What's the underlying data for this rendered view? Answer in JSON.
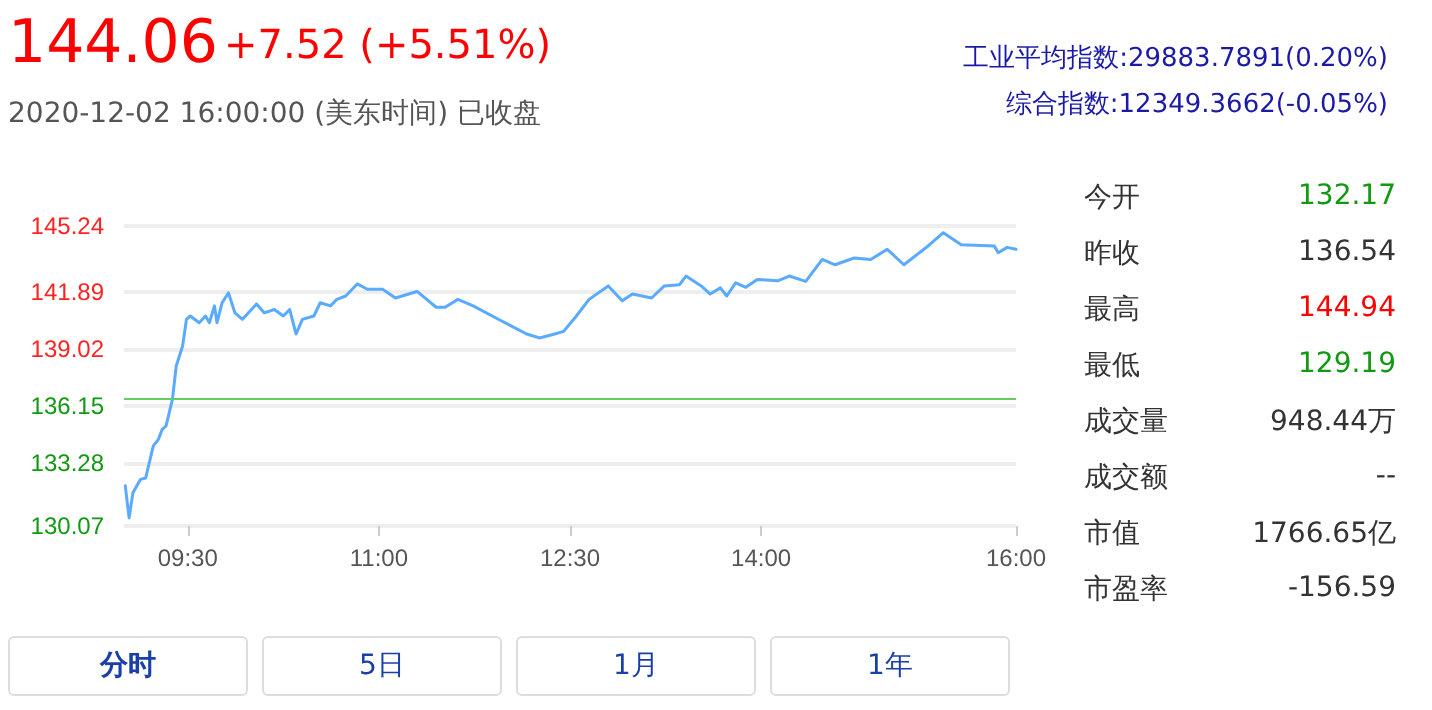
{
  "chart_data": {
    "type": "line",
    "title": "144.06",
    "subtitle": "2020-12-02 16:00:00 (美东时间) 已收盘",
    "annotations": [
      "+7.52 (+5.51%)",
      "工业平均指数:29883.7891(0.20%)",
      "综合指数:12349.3662(-0.05%)",
      "今开",
      "132.17",
      "昨收",
      "136.54",
      "最高",
      "144.94",
      "最低",
      "129.19",
      "成交量",
      "948.44万",
      "成交额",
      "--",
      "市值",
      "1766.65亿",
      "市盈率",
      "-156.59",
      "分时",
      "5日",
      "1月",
      "1年"
    ],
    "x": [
      9.01,
      9.04,
      9.07,
      9.13,
      9.17,
      9.23,
      9.27,
      9.3,
      9.33,
      9.38,
      9.41,
      9.46,
      9.49,
      9.52,
      9.59,
      9.64,
      9.67,
      9.71,
      9.73,
      9.77,
      9.82,
      9.87,
      9.93,
      10.04,
      10.1,
      10.18,
      10.25,
      10.3,
      10.35,
      10.4,
      10.49,
      10.54,
      10.62,
      10.67,
      10.74,
      10.83,
      10.91,
      11.03,
      11.13,
      11.3,
      11.45,
      11.52,
      11.62,
      11.74,
      11.96,
      12.16,
      12.26,
      12.38,
      12.45,
      12.55,
      12.65,
      12.8,
      12.91,
      12.99,
      13.14,
      13.24,
      13.36,
      13.41,
      13.53,
      13.6,
      13.68,
      13.73,
      13.8,
      13.88,
      13.97,
      14.13,
      14.22,
      14.35,
      14.48,
      14.58,
      14.73,
      14.86,
      14.99,
      15.12,
      15.31,
      15.43,
      15.57,
      15.83,
      15.86,
      15.93,
      16.0
    ],
    "series": [
      {
        "color": "#5aabff",
        "values": [
          132.1,
          130.48,
          131.75,
          132.43,
          132.5,
          134.12,
          134.45,
          134.96,
          135.13,
          136.47,
          138.16,
          139.17,
          140.52,
          140.69,
          140.35,
          140.69,
          140.35,
          141.2,
          140.35,
          141.36,
          141.86,
          140.85,
          140.52,
          141.3,
          140.85,
          141.02,
          140.69,
          141.02,
          139.78,
          140.52,
          140.69,
          141.36,
          141.2,
          141.53,
          141.7,
          142.31,
          142.04,
          142.04,
          141.6,
          141.93,
          141.13,
          141.13,
          141.53,
          141.2,
          140.45,
          139.78,
          139.58,
          139.78,
          139.91,
          140.69,
          141.53,
          142.21,
          141.46,
          141.8,
          141.6,
          142.21,
          142.27,
          142.71,
          142.21,
          141.8,
          142.11,
          141.7,
          142.37,
          142.14,
          142.54,
          142.47,
          142.71,
          142.44,
          143.55,
          143.28,
          143.62,
          143.55,
          144.06,
          143.28,
          144.23,
          144.9,
          144.29,
          144.23,
          143.89,
          144.16,
          144.06
        ]
      }
    ],
    "xlim": [
      9,
      16
    ],
    "xticks": [
      {
        "value": 9.5,
        "label": "09:30"
      },
      {
        "value": 11,
        "label": "11:00"
      },
      {
        "value": 12.5,
        "label": "12:30"
      },
      {
        "value": 14,
        "label": "14:00"
      },
      {
        "value": 16,
        "label": "16:00"
      }
    ],
    "ylim": [
      130.07,
      145.24
    ],
    "yticks": [
      130.07,
      133.28,
      136.15,
      139.02,
      141.89,
      145.24
    ],
    "ref_lines": [
      {
        "axis": "y",
        "value": 136.54,
        "color": "#66cc66"
      }
    ],
    "grid": "y",
    "marker": "none",
    "line_style": "solid"
  }
}
